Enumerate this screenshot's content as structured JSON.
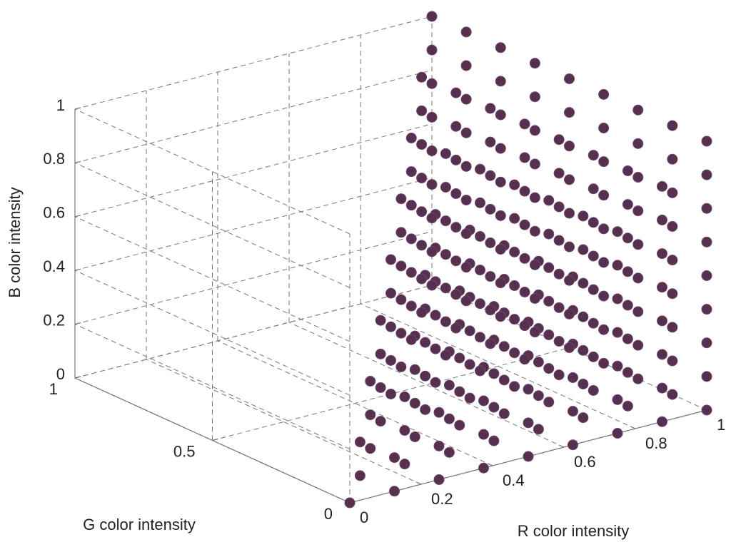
{
  "chart_data": {
    "type": "scatter3d",
    "xlabel": "R color intensity",
    "ylabel": "G color intensity",
    "zlabel": "B  color intensity",
    "color": "#56304f",
    "grid": true,
    "xlim": [
      0,
      1
    ],
    "ylim": [
      0,
      1
    ],
    "zlim": [
      0,
      1
    ],
    "xticks": [
      0,
      0.2,
      0.4,
      0.6,
      0.8,
      1
    ],
    "yticks": [
      0,
      0.5,
      1
    ],
    "zticks": [
      0,
      0.2,
      0.4,
      0.6,
      0.8,
      1
    ],
    "x": [
      0,
      0.125,
      0.125,
      0.125,
      0.125,
      0.25,
      0.25,
      0.25,
      0.25,
      0.25,
      0.25,
      0.25,
      0.25,
      0.25,
      0.375,
      0.375,
      0.375,
      0.375,
      0.375,
      0.375,
      0.375,
      0.375,
      0.375,
      0.375,
      0.375,
      0.375,
      0.375,
      0.375,
      0.375,
      0.375,
      0.5,
      0.5,
      0.5,
      0.5,
      0.5,
      0.5,
      0.5,
      0.5,
      0.5,
      0.5,
      0.5,
      0.5,
      0.5,
      0.5,
      0.5,
      0.5,
      0.5,
      0.5,
      0.5,
      0.5,
      0.5,
      0.5,
      0.5,
      0.5,
      0.5,
      0.625,
      0.625,
      0.625,
      0.625,
      0.625,
      0.625,
      0.625,
      0.625,
      0.625,
      0.625,
      0.625,
      0.625,
      0.625,
      0.625,
      0.625,
      0.625,
      0.625,
      0.625,
      0.625,
      0.625,
      0.625,
      0.625,
      0.625,
      0.625,
      0.625,
      0.625,
      0.625,
      0.625,
      0.625,
      0.625,
      0.625,
      0.625,
      0.625,
      0.625,
      0.625,
      0.625,
      0.75,
      0.75,
      0.75,
      0.75,
      0.75,
      0.75,
      0.75,
      0.75,
      0.75,
      0.75,
      0.75,
      0.75,
      0.75,
      0.75,
      0.75,
      0.75,
      0.75,
      0.75,
      0.75,
      0.75,
      0.75,
      0.75,
      0.75,
      0.75,
      0.75,
      0.75,
      0.75,
      0.75,
      0.75,
      0.75,
      0.75,
      0.75,
      0.75,
      0.75,
      0.75,
      0.75,
      0.75,
      0.75,
      0.75,
      0.75,
      0.75,
      0.75,
      0.75,
      0.75,
      0.75,
      0.75,
      0.75,
      0.75,
      0.75,
      0.875,
      0.875,
      0.875,
      0.875,
      0.875,
      0.875,
      0.875,
      0.875,
      0.875,
      0.875,
      0.875,
      0.875,
      0.875,
      0.875,
      0.875,
      0.875,
      0.875,
      0.875,
      0.875,
      0.875,
      0.875,
      0.875,
      0.875,
      0.875,
      0.875,
      0.875,
      0.875,
      0.875,
      0.875,
      0.875,
      0.875,
      0.875,
      0.875,
      0.875,
      0.875,
      0.875,
      0.875,
      0.875,
      0.875,
      0.875,
      0.875,
      0.875,
      0.875,
      0.875,
      0.875,
      0.875,
      0.875,
      0.875,
      0.875,
      0.875,
      0.875,
      0.875,
      0.875,
      0.875,
      0.875,
      0.875,
      0.875,
      0.875,
      0.875,
      0.875,
      0.875,
      0.875,
      0.875,
      0.875,
      1,
      1,
      1,
      1,
      1,
      1,
      1,
      1,
      1,
      1,
      1,
      1,
      1,
      1,
      1,
      1,
      1,
      1,
      1,
      1,
      1,
      1,
      1,
      1,
      1,
      1,
      1,
      1,
      1,
      1,
      1,
      1,
      1,
      1,
      1,
      1,
      1,
      1,
      1,
      1,
      1,
      1,
      1,
      1,
      1,
      1,
      1,
      1,
      1,
      1,
      1,
      1,
      1,
      1,
      1,
      1,
      1,
      1,
      1,
      1,
      1,
      1,
      1,
      1,
      1,
      1,
      1,
      1,
      1,
      1,
      1,
      1,
      1,
      1,
      1,
      1,
      1,
      1,
      1,
      1,
      1
    ],
    "y": [
      0,
      0,
      0,
      0.125,
      0.125,
      0,
      0,
      0,
      0.125,
      0.125,
      0.125,
      0.25,
      0.25,
      0.25,
      0,
      0,
      0,
      0,
      0.125,
      0.125,
      0.125,
      0.125,
      0.25,
      0.25,
      0.25,
      0.25,
      0.375,
      0.375,
      0.375,
      0.375,
      0,
      0,
      0,
      0,
      0,
      0.125,
      0.125,
      0.125,
      0.125,
      0.125,
      0.25,
      0.25,
      0.25,
      0.25,
      0.25,
      0.375,
      0.375,
      0.375,
      0.375,
      0.375,
      0.5,
      0.5,
      0.5,
      0.5,
      0.5,
      0,
      0,
      0,
      0,
      0,
      0,
      0.125,
      0.125,
      0.125,
      0.125,
      0.125,
      0.125,
      0.25,
      0.25,
      0.25,
      0.25,
      0.25,
      0.25,
      0.375,
      0.375,
      0.375,
      0.375,
      0.375,
      0.375,
      0.5,
      0.5,
      0.5,
      0.5,
      0.5,
      0.5,
      0.625,
      0.625,
      0.625,
      0.625,
      0.625,
      0.625,
      0,
      0,
      0,
      0,
      0,
      0,
      0,
      0.125,
      0.125,
      0.125,
      0.125,
      0.125,
      0.125,
      0.125,
      0.25,
      0.25,
      0.25,
      0.25,
      0.25,
      0.25,
      0.25,
      0.375,
      0.375,
      0.375,
      0.375,
      0.375,
      0.375,
      0.375,
      0.5,
      0.5,
      0.5,
      0.5,
      0.5,
      0.5,
      0.5,
      0.625,
      0.625,
      0.625,
      0.625,
      0.625,
      0.625,
      0.625,
      0.75,
      0.75,
      0.75,
      0.75,
      0.75,
      0.75,
      0.75,
      0,
      0,
      0,
      0,
      0,
      0,
      0,
      0,
      0.125,
      0.125,
      0.125,
      0.125,
      0.125,
      0.125,
      0.125,
      0.125,
      0.25,
      0.25,
      0.25,
      0.25,
      0.25,
      0.25,
      0.25,
      0.25,
      0.375,
      0.375,
      0.375,
      0.375,
      0.375,
      0.375,
      0.375,
      0.375,
      0.5,
      0.5,
      0.5,
      0.5,
      0.5,
      0.5,
      0.5,
      0.5,
      0.625,
      0.625,
      0.625,
      0.625,
      0.625,
      0.625,
      0.625,
      0.625,
      0.75,
      0.75,
      0.75,
      0.75,
      0.75,
      0.75,
      0.75,
      0.75,
      0.875,
      0.875,
      0.875,
      0.875,
      0.875,
      0.875,
      0.875,
      0.875,
      0,
      0,
      0,
      0,
      0,
      0,
      0,
      0,
      0,
      0.125,
      0.125,
      0.125,
      0.125,
      0.125,
      0.125,
      0.125,
      0.125,
      0.125,
      0.25,
      0.25,
      0.25,
      0.25,
      0.25,
      0.25,
      0.25,
      0.25,
      0.25,
      0.375,
      0.375,
      0.375,
      0.375,
      0.375,
      0.375,
      0.375,
      0.375,
      0.375,
      0.5,
      0.5,
      0.5,
      0.5,
      0.5,
      0.5,
      0.5,
      0.5,
      0.5,
      0.625,
      0.625,
      0.625,
      0.625,
      0.625,
      0.625,
      0.625,
      0.625,
      0.625,
      0.75,
      0.75,
      0.75,
      0.75,
      0.75,
      0.75,
      0.75,
      0.75,
      0.75,
      0.875,
      0.875,
      0.875,
      0.875,
      0.875,
      0.875,
      0.875,
      0.875,
      0.875,
      1,
      1,
      1,
      1,
      1,
      1,
      1,
      1,
      1
    ],
    "z": [
      0,
      0,
      0.125,
      0,
      0.125,
      0,
      0.125,
      0.25,
      0,
      0.125,
      0.25,
      0,
      0.125,
      0.25,
      0,
      0.125,
      0.25,
      0.375,
      0,
      0.125,
      0.25,
      0.375,
      0,
      0.125,
      0.25,
      0.375,
      0,
      0.125,
      0.25,
      0.375,
      0,
      0.125,
      0.25,
      0.375,
      0.5,
      0,
      0.125,
      0.25,
      0.375,
      0.5,
      0,
      0.125,
      0.25,
      0.375,
      0.5,
      0,
      0.125,
      0.25,
      0.375,
      0.5,
      0,
      0.125,
      0.25,
      0.375,
      0.5,
      0,
      0.125,
      0.25,
      0.375,
      0.5,
      0.625,
      0,
      0.125,
      0.25,
      0.375,
      0.5,
      0.625,
      0,
      0.125,
      0.25,
      0.375,
      0.5,
      0.625,
      0,
      0.125,
      0.25,
      0.375,
      0.5,
      0.625,
      0,
      0.125,
      0.25,
      0.375,
      0.5,
      0.625,
      0,
      0.125,
      0.25,
      0.375,
      0.5,
      0.625,
      0,
      0.125,
      0.25,
      0.375,
      0.5,
      0.625,
      0.75,
      0,
      0.125,
      0.25,
      0.375,
      0.5,
      0.625,
      0.75,
      0,
      0.125,
      0.25,
      0.375,
      0.5,
      0.625,
      0.75,
      0,
      0.125,
      0.25,
      0.375,
      0.5,
      0.625,
      0.75,
      0,
      0.125,
      0.25,
      0.375,
      0.5,
      0.625,
      0.75,
      0,
      0.125,
      0.25,
      0.375,
      0.5,
      0.625,
      0.75,
      0,
      0.125,
      0.25,
      0.375,
      0.5,
      0.625,
      0.75,
      0,
      0.125,
      0.25,
      0.375,
      0.5,
      0.625,
      0.75,
      0.875,
      0,
      0.125,
      0.25,
      0.375,
      0.5,
      0.625,
      0.75,
      0.875,
      0,
      0.125,
      0.25,
      0.375,
      0.5,
      0.625,
      0.75,
      0.875,
      0,
      0.125,
      0.25,
      0.375,
      0.5,
      0.625,
      0.75,
      0.875,
      0,
      0.125,
      0.25,
      0.375,
      0.5,
      0.625,
      0.75,
      0.875,
      0,
      0.125,
      0.25,
      0.375,
      0.5,
      0.625,
      0.75,
      0.875,
      0,
      0.125,
      0.25,
      0.375,
      0.5,
      0.625,
      0.75,
      0.875,
      0,
      0.125,
      0.25,
      0.375,
      0.5,
      0.625,
      0.75,
      0.875,
      0,
      0.125,
      0.25,
      0.375,
      0.5,
      0.625,
      0.75,
      0.875,
      1,
      0,
      0.125,
      0.25,
      0.375,
      0.5,
      0.625,
      0.75,
      0.875,
      1,
      0,
      0.125,
      0.25,
      0.375,
      0.5,
      0.625,
      0.75,
      0.875,
      1,
      0,
      0.125,
      0.25,
      0.375,
      0.5,
      0.625,
      0.75,
      0.875,
      1,
      0,
      0.125,
      0.25,
      0.375,
      0.5,
      0.625,
      0.75,
      0.875,
      1,
      0,
      0.125,
      0.25,
      0.375,
      0.5,
      0.625,
      0.75,
      0.875,
      1,
      0,
      0.125,
      0.25,
      0.375,
      0.5,
      0.625,
      0.75,
      0.875,
      1,
      0,
      0.125,
      0.25,
      0.375,
      0.5,
      0.625,
      0.75,
      0.875,
      1,
      0,
      0.125,
      0.25,
      0.375,
      0.5,
      0.625,
      0.75,
      0.875,
      1
    ]
  }
}
